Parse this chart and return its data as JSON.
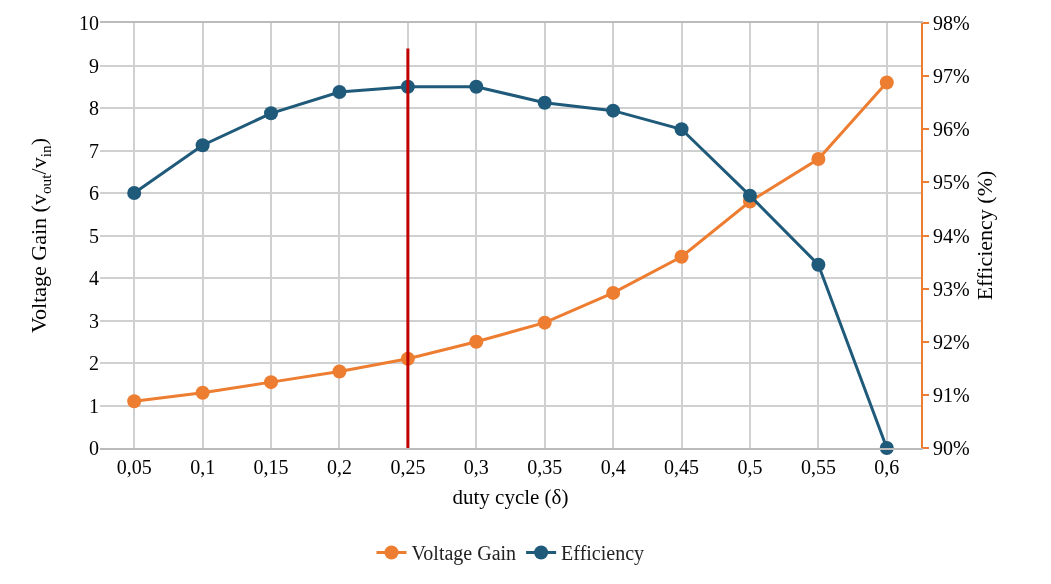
{
  "chart_data": {
    "type": "line",
    "xlabel": "duty cycle (δ)",
    "ylabel": "Voltage Gain (v$_{out}$/v$_{in}$)",
    "y2label": "Efficiency (%)",
    "categories": [
      "0,05",
      "0,1",
      "0,15",
      "0,2",
      "0,25",
      "0,3",
      "0,35",
      "0,4",
      "0,45",
      "0,5",
      "0,55",
      "0,6"
    ],
    "series": [
      {
        "name": "Voltage Gain",
        "color": "#ed7d31",
        "values": [
          1.1,
          1.3,
          1.55,
          1.8,
          2.1,
          2.5,
          2.95,
          3.65,
          4.5,
          5.8,
          6.8,
          8.6
        ]
      },
      {
        "name": "Efficiency",
        "color": "#1f5a7a",
        "axis": "y2",
        "values": [
          94.8,
          95.7,
          96.3,
          96.7,
          96.8,
          96.8,
          96.5,
          96.35,
          96.0,
          94.75,
          93.45,
          90.0
        ]
      }
    ],
    "ylim": [
      0,
      10
    ],
    "yticks": [
      0,
      1,
      2,
      3,
      4,
      5,
      6,
      7,
      8,
      9,
      10
    ],
    "y2lim": [
      90,
      98
    ],
    "y2ticks": [
      {
        "value": 90,
        "label": "90%"
      },
      {
        "value": 91,
        "label": "91%"
      },
      {
        "value": 92,
        "label": "92%"
      },
      {
        "value": 93,
        "label": "93%"
      },
      {
        "value": 94,
        "label": "94%"
      },
      {
        "value": 95,
        "label": "95%"
      },
      {
        "value": 96,
        "label": "96%"
      },
      {
        "value": 97,
        "label": "97%"
      },
      {
        "value": 98,
        "label": "98%"
      }
    ],
    "ref_lines": [
      {
        "axis": "x",
        "value": "0,25",
        "color": "#c00000"
      }
    ],
    "grid": true,
    "legend": "bottom",
    "marker": "circle",
    "line_style": "solid"
  }
}
